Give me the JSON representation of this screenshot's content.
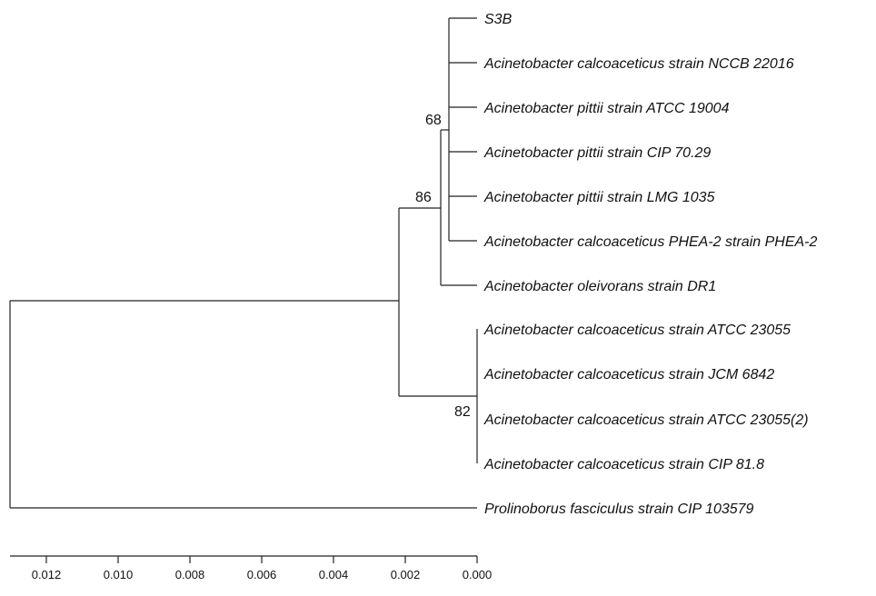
{
  "tree": {
    "leaves": [
      "S3B",
      "Acinetobacter calcoaceticus strain NCCB 22016",
      "Acinetobacter pittii strain ATCC 19004",
      "Acinetobacter pittii strain CIP 70.29",
      "Acinetobacter pittii strain LMG 1035",
      "Acinetobacter calcoaceticus PHEA-2 strain PHEA-2",
      "Acinetobacter oleivorans strain DR1",
      "Acinetobacter calcoaceticus strain ATCC 23055",
      "Acinetobacter calcoaceticus strain JCM 6842",
      "Acinetobacter calcoaceticus strain ATCC 23055(2)",
      "Acinetobacter calcoaceticus strain CIP 81.8",
      "Prolinoborus fasciculus strain CIP 103579"
    ],
    "bootstrap": {
      "node_68": "68",
      "node_86": "86",
      "node_82": "82"
    }
  },
  "scale_axis": {
    "ticks": [
      "0.012",
      "0.010",
      "0.008",
      "0.006",
      "0.004",
      "0.002",
      "0.000"
    ]
  }
}
